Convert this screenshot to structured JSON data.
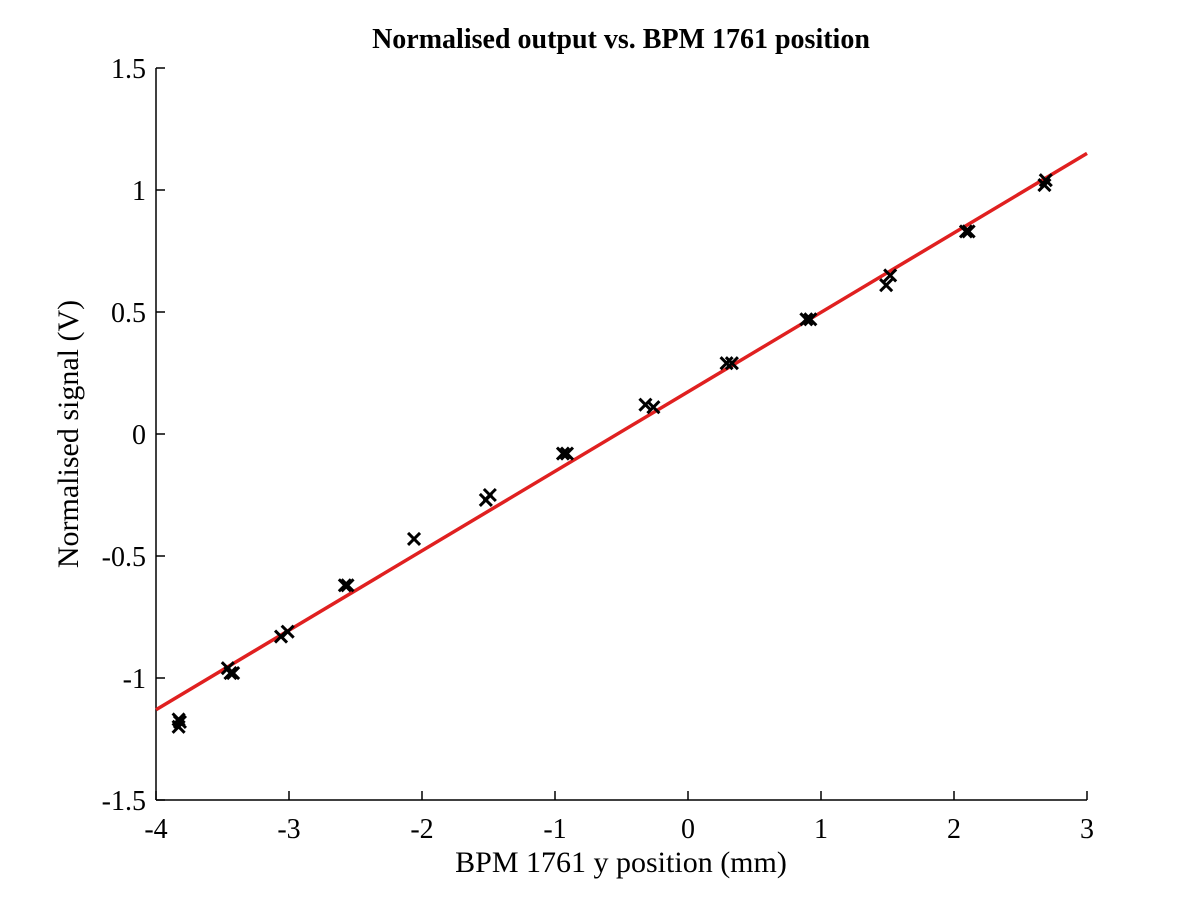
{
  "chart_data": {
    "type": "scatter",
    "title": "Normalised output vs. BPM 1761 position",
    "xlabel": "BPM 1761 y position (mm)",
    "ylabel": "Normalised signal (V)",
    "xlim": [
      -4,
      3
    ],
    "ylim": [
      -1.5,
      1.5
    ],
    "xticks": [
      -4,
      -3,
      -2,
      -1,
      0,
      1,
      2,
      3
    ],
    "xtick_labels": [
      "-4",
      "-3",
      "-2",
      "-1",
      "0",
      "1",
      "2",
      "3"
    ],
    "yticks": [
      -1.5,
      -1,
      -0.5,
      0,
      0.5,
      1,
      1.5
    ],
    "ytick_labels": [
      "-1.5",
      "-1",
      "-0.5",
      "0",
      "0.5",
      "1",
      "1.5"
    ],
    "grid": false,
    "legend": "none",
    "series": [
      {
        "marker": "x",
        "color": "#000000",
        "points": [
          [
            -3.83,
            -1.17
          ],
          [
            -3.83,
            -1.2
          ],
          [
            -3.82,
            -1.18
          ],
          [
            -3.46,
            -0.96
          ],
          [
            -3.44,
            -0.98
          ],
          [
            -3.42,
            -0.98
          ],
          [
            -3.06,
            -0.83
          ],
          [
            -3.01,
            -0.81
          ],
          [
            -2.58,
            -0.62
          ],
          [
            -2.56,
            -0.62
          ],
          [
            -2.06,
            -0.43
          ],
          [
            -1.52,
            -0.27
          ],
          [
            -1.49,
            -0.25
          ],
          [
            -0.94,
            -0.08
          ],
          [
            -0.91,
            -0.08
          ],
          [
            -0.32,
            0.12
          ],
          [
            -0.26,
            0.11
          ],
          [
            0.29,
            0.29
          ],
          [
            0.33,
            0.29
          ],
          [
            0.89,
            0.47
          ],
          [
            0.92,
            0.47
          ],
          [
            1.49,
            0.61
          ],
          [
            1.52,
            0.65
          ],
          [
            2.09,
            0.83
          ],
          [
            2.11,
            0.83
          ],
          [
            2.68,
            1.02
          ],
          [
            2.69,
            1.04
          ]
        ]
      },
      {
        "type": "line",
        "color": "#e02020",
        "x": [
          -4,
          3
        ],
        "y": [
          -1.13,
          1.15
        ]
      }
    ]
  }
}
